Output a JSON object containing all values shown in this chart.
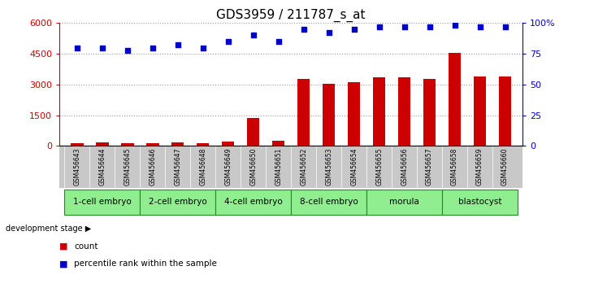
{
  "title": "GDS3959 / 211787_s_at",
  "samples": [
    "GSM456643",
    "GSM456644",
    "GSM456645",
    "GSM456646",
    "GSM456647",
    "GSM456648",
    "GSM456649",
    "GSM456650",
    "GSM456651",
    "GSM456652",
    "GSM456653",
    "GSM456654",
    "GSM456655",
    "GSM456656",
    "GSM456657",
    "GSM456658",
    "GSM456659",
    "GSM456660"
  ],
  "counts": [
    120,
    150,
    140,
    120,
    150,
    110,
    220,
    1350,
    250,
    3250,
    3050,
    3100,
    3350,
    3350,
    3250,
    4550,
    3400,
    3400
  ],
  "percentile_ranks": [
    80,
    80,
    78,
    80,
    82,
    80,
    85,
    90,
    85,
    95,
    92,
    95,
    97,
    97,
    97,
    98,
    97,
    97
  ],
  "groups": [
    {
      "label": "1-cell embryo",
      "start": 0,
      "end": 3
    },
    {
      "label": "2-cell embryo",
      "start": 3,
      "end": 6
    },
    {
      "label": "4-cell embryo",
      "start": 6,
      "end": 9
    },
    {
      "label": "8-cell embryo",
      "start": 9,
      "end": 12
    },
    {
      "label": "morula",
      "start": 12,
      "end": 15
    },
    {
      "label": "blastocyst",
      "start": 15,
      "end": 18
    }
  ],
  "ylim_left": [
    0,
    6000
  ],
  "ylim_right": [
    0,
    100
  ],
  "yticks_left": [
    0,
    1500,
    3000,
    4500,
    6000
  ],
  "yticks_right": [
    0,
    25,
    50,
    75,
    100
  ],
  "bar_color": "#CC0000",
  "dot_color": "#0000CC",
  "bg_color": "#ffffff",
  "tick_color_left": "#CC0000",
  "tick_color_right": "#0000CC",
  "group_color": "#90EE90",
  "group_border_color": "#228B22",
  "sample_bg_color": "#c8c8c8",
  "development_stage_label": "development stage",
  "legend_count_label": "count",
  "legend_percentile_label": "percentile rank within the sample",
  "title_fontsize": 11,
  "right_labels": [
    "0",
    "25",
    "50",
    "75",
    "100%"
  ]
}
